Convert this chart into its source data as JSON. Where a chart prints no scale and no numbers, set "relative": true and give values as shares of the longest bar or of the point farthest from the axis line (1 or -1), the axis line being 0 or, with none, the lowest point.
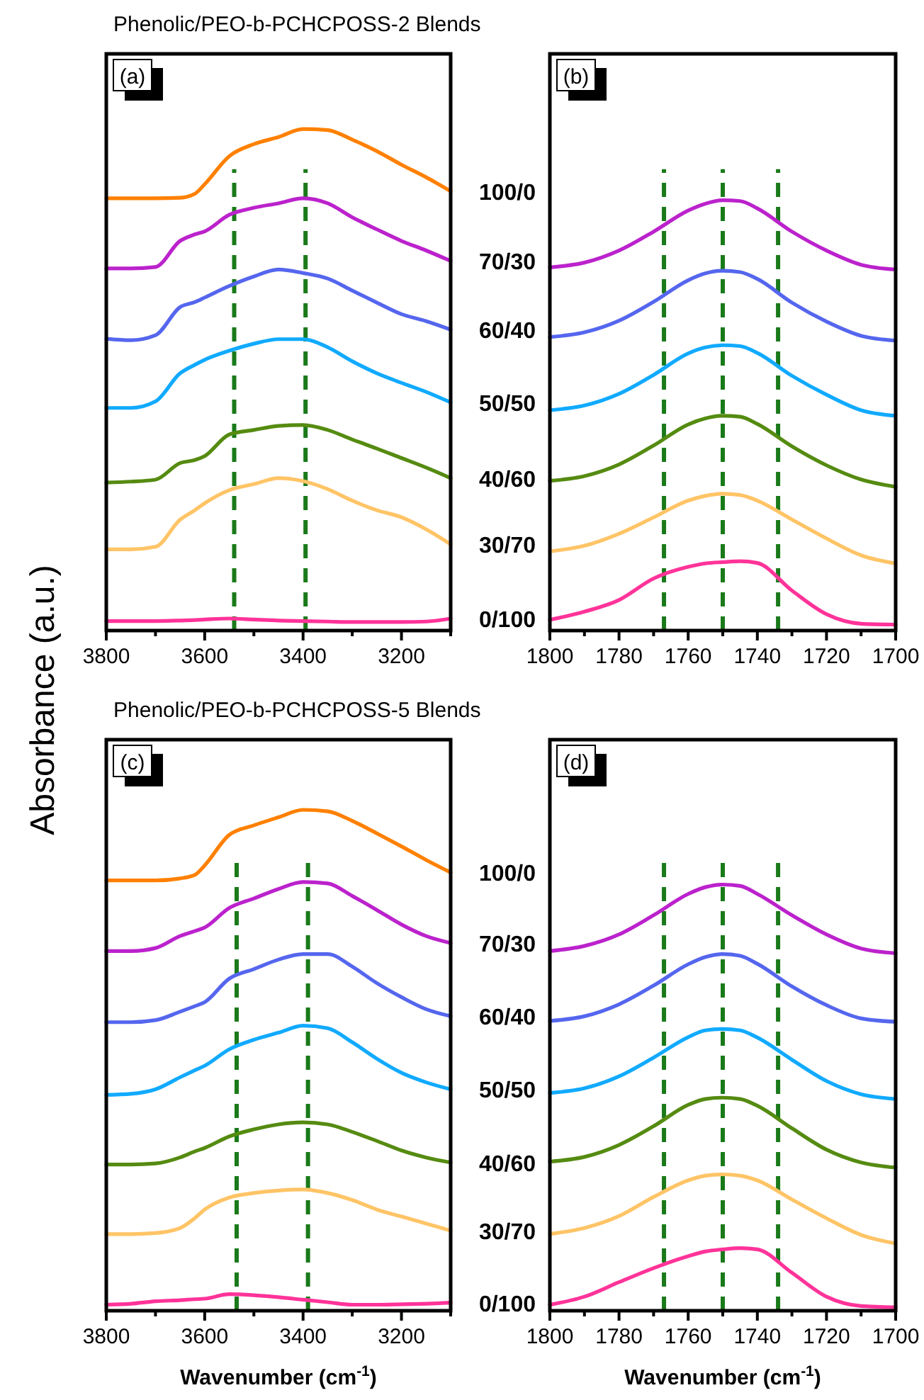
{
  "chart_data": [
    {
      "type": "line",
      "title": "Phenolic/PEO-b-PCHCPOSS-2 Blends",
      "ylabel": "Absorbance (a.u.)",
      "relative": true,
      "annotations": [
        "(a)"
      ],
      "xlim": [
        3800,
        3100
      ],
      "xticks": [
        3800,
        {
          "value": 3700,
          "label": null
        },
        3600,
        {
          "value": 3500,
          "label": null
        },
        3400,
        {
          "value": 3300,
          "label": null
        },
        3200,
        {
          "value": 3100,
          "label": null
        }
      ],
      "x": [
        3800,
        3750,
        3700,
        3650,
        3620,
        3600,
        3550,
        3500,
        3450,
        3400,
        3350,
        3300,
        3250,
        3200,
        3150,
        3100
      ],
      "series": [
        {
          "name": "100/0",
          "color": "#ff8000",
          "values": [
            0.862,
            0.862,
            0.862,
            0.863,
            0.871,
            0.89,
            0.946,
            0.97,
            0.984,
            1.0,
            0.998,
            0.979,
            0.956,
            0.929,
            0.904,
            0.876
          ]
        },
        {
          "name": "70/30",
          "color": "#bb22cc",
          "values": [
            0.722,
            0.722,
            0.725,
            0.777,
            0.79,
            0.796,
            0.829,
            0.843,
            0.852,
            0.862,
            0.852,
            0.824,
            0.8,
            0.777,
            0.758,
            0.737
          ]
        },
        {
          "name": "60/40",
          "color": "#5566ee",
          "values": [
            0.582,
            0.579,
            0.589,
            0.645,
            0.655,
            0.664,
            0.687,
            0.706,
            0.72,
            0.713,
            0.702,
            0.678,
            0.654,
            0.631,
            0.617,
            0.6
          ]
        },
        {
          "name": "50/50",
          "color": "#11aaff",
          "values": [
            0.444,
            0.444,
            0.457,
            0.513,
            0.53,
            0.54,
            0.558,
            0.572,
            0.581,
            0.581,
            0.565,
            0.537,
            0.513,
            0.494,
            0.476,
            0.455
          ]
        },
        {
          "name": "40/60",
          "color": "#558b11",
          "values": [
            0.295,
            0.297,
            0.301,
            0.334,
            0.34,
            0.348,
            0.391,
            0.4,
            0.408,
            0.41,
            0.4,
            0.381,
            0.363,
            0.344,
            0.325,
            0.304
          ]
        },
        {
          "name": "30/70",
          "color": "#ffc466",
          "values": [
            0.162,
            0.162,
            0.167,
            0.221,
            0.24,
            0.254,
            0.28,
            0.292,
            0.304,
            0.298,
            0.282,
            0.259,
            0.24,
            0.226,
            0.202,
            0.172
          ]
        },
        {
          "name": "0/100",
          "color": "#ff3399",
          "values": [
            0.019,
            0.019,
            0.019,
            0.02,
            0.021,
            0.022,
            0.024,
            0.022,
            0.02,
            0.019,
            0.018,
            0.017,
            0.017,
            0.017,
            0.018,
            0.024
          ]
        }
      ],
      "ref_lines": [
        {
          "axis": "x",
          "value": 3540,
          "color": "#1a7a1a",
          "line_style": "dashed"
        },
        {
          "axis": "x",
          "value": 3395,
          "color": "#1a7a1a",
          "line_style": "dashed"
        }
      ]
    },
    {
      "type": "line",
      "relative": true,
      "annotations": [
        "(b)"
      ],
      "xlim": [
        1800,
        1700
      ],
      "xticks": [
        1800,
        {
          "value": 1790,
          "label": null
        },
        1780,
        {
          "value": 1770,
          "label": null
        },
        1760,
        {
          "value": 1750,
          "label": null
        },
        1740,
        {
          "value": 1730,
          "label": null
        },
        1720,
        {
          "value": 1710,
          "label": null
        },
        1700
      ],
      "x": [
        1800,
        1790,
        1780,
        1770,
        1760,
        1755,
        1750,
        1745,
        1740,
        1730,
        1720,
        1710,
        1700
      ],
      "series": [
        {
          "color": "#bb22cc",
          "values": [
            0.844,
            0.855,
            0.883,
            0.927,
            0.976,
            0.992,
            1.0,
            0.998,
            0.981,
            0.927,
            0.883,
            0.85,
            0.839
          ]
        },
        {
          "color": "#5566ee",
          "values": [
            0.682,
            0.693,
            0.72,
            0.764,
            0.814,
            0.83,
            0.836,
            0.833,
            0.817,
            0.762,
            0.718,
            0.685,
            0.674
          ]
        },
        {
          "color": "#11aaff",
          "values": [
            0.512,
            0.523,
            0.55,
            0.594,
            0.644,
            0.658,
            0.663,
            0.661,
            0.645,
            0.592,
            0.548,
            0.512,
            0.499
          ]
        },
        {
          "color": "#558b11",
          "values": [
            0.348,
            0.359,
            0.386,
            0.43,
            0.479,
            0.493,
            0.499,
            0.497,
            0.48,
            0.428,
            0.384,
            0.351,
            0.334
          ]
        },
        {
          "color": "#ffc466",
          "values": [
            0.184,
            0.197,
            0.225,
            0.263,
            0.302,
            0.313,
            0.318,
            0.315,
            0.302,
            0.258,
            0.214,
            0.175,
            0.156
          ]
        },
        {
          "color": "#ff3399",
          "values": [
            0.025,
            0.044,
            0.071,
            0.121,
            0.148,
            0.156,
            0.159,
            0.161,
            0.157,
            0.093,
            0.038,
            0.016,
            0.014
          ]
        }
      ],
      "ref_lines": [
        {
          "axis": "x",
          "value": 1767,
          "color": "#1a7a1a",
          "line_style": "dashed"
        },
        {
          "axis": "x",
          "value": 1750,
          "color": "#1a7a1a",
          "line_style": "dashed"
        },
        {
          "axis": "x",
          "value": 1734,
          "color": "#1a7a1a",
          "line_style": "dashed"
        }
      ]
    },
    {
      "type": "line",
      "title": "Phenolic/PEO-b-PCHCPOSS-5 Blends",
      "xlabel": "Wavenumber (cm$^{-1}$)",
      "relative": true,
      "annotations": [
        "(c)"
      ],
      "xlim": [
        3800,
        3100
      ],
      "xticks": [
        3800,
        {
          "value": 3700,
          "label": null
        },
        3600,
        {
          "value": 3500,
          "label": null
        },
        3400,
        {
          "value": 3300,
          "label": null
        },
        3200,
        {
          "value": 3100,
          "label": null
        }
      ],
      "x": [
        3800,
        3750,
        3700,
        3650,
        3620,
        3600,
        3550,
        3500,
        3450,
        3400,
        3350,
        3300,
        3250,
        3200,
        3150,
        3100
      ],
      "series": [
        {
          "name": "100/0",
          "color": "#ff8000",
          "values": [
            0.859,
            0.859,
            0.859,
            0.863,
            0.87,
            0.889,
            0.95,
            0.969,
            0.985,
            1.0,
            0.997,
            0.978,
            0.953,
            0.927,
            0.9,
            0.875
          ]
        },
        {
          "name": "70/30",
          "color": "#bb22cc",
          "values": [
            0.718,
            0.718,
            0.724,
            0.748,
            0.758,
            0.765,
            0.804,
            0.823,
            0.842,
            0.856,
            0.853,
            0.828,
            0.8,
            0.771,
            0.748,
            0.734
          ]
        },
        {
          "name": "60/40",
          "color": "#5566ee",
          "values": [
            0.576,
            0.576,
            0.58,
            0.597,
            0.608,
            0.616,
            0.663,
            0.682,
            0.701,
            0.712,
            0.712,
            0.687,
            0.654,
            0.626,
            0.602,
            0.588
          ]
        },
        {
          "name": "50/50",
          "color": "#11aaff",
          "values": [
            0.431,
            0.433,
            0.442,
            0.466,
            0.48,
            0.489,
            0.522,
            0.541,
            0.555,
            0.569,
            0.564,
            0.536,
            0.503,
            0.475,
            0.456,
            0.442
          ]
        },
        {
          "name": "40/60",
          "color": "#558b11",
          "values": [
            0.292,
            0.292,
            0.294,
            0.306,
            0.318,
            0.325,
            0.348,
            0.362,
            0.372,
            0.376,
            0.372,
            0.357,
            0.339,
            0.32,
            0.306,
            0.296
          ]
        },
        {
          "name": "30/70",
          "color": "#ffc466",
          "values": [
            0.153,
            0.153,
            0.155,
            0.165,
            0.185,
            0.202,
            0.226,
            0.235,
            0.24,
            0.242,
            0.235,
            0.221,
            0.202,
            0.188,
            0.174,
            0.16
          ]
        },
        {
          "name": "0/100",
          "color": "#ff3399",
          "values": [
            0.012,
            0.014,
            0.019,
            0.021,
            0.023,
            0.024,
            0.033,
            0.031,
            0.027,
            0.022,
            0.017,
            0.012,
            0.012,
            0.013,
            0.014,
            0.016
          ]
        }
      ],
      "ref_lines": [
        {
          "axis": "x",
          "value": 3535,
          "color": "#1a7a1a",
          "line_style": "dashed"
        },
        {
          "axis": "x",
          "value": 3390,
          "color": "#1a7a1a",
          "line_style": "dashed"
        }
      ]
    },
    {
      "type": "line",
      "xlabel": "Wavenumber (cm$^{-1}$)",
      "relative": true,
      "annotations": [
        "(d)"
      ],
      "xlim": [
        1800,
        1700
      ],
      "xticks": [
        1800,
        {
          "value": 1790,
          "label": null
        },
        1780,
        {
          "value": 1770,
          "label": null
        },
        1760,
        {
          "value": 1750,
          "label": null
        },
        1740,
        {
          "value": 1730,
          "label": null
        },
        1720,
        {
          "value": 1710,
          "label": null
        },
        1700
      ],
      "x": [
        1800,
        1790,
        1780,
        1770,
        1760,
        1755,
        1750,
        1745,
        1740,
        1730,
        1720,
        1710,
        1700
      ],
      "series": [
        {
          "color": "#bb22cc",
          "values": [
            0.844,
            0.856,
            0.883,
            0.928,
            0.978,
            0.994,
            1.0,
            0.997,
            0.978,
            0.928,
            0.883,
            0.85,
            0.839
          ]
        },
        {
          "color": "#5566ee",
          "values": [
            0.68,
            0.691,
            0.719,
            0.763,
            0.813,
            0.83,
            0.837,
            0.833,
            0.814,
            0.761,
            0.717,
            0.686,
            0.678
          ]
        },
        {
          "color": "#11aaff",
          "values": [
            0.511,
            0.522,
            0.55,
            0.594,
            0.642,
            0.658,
            0.661,
            0.658,
            0.641,
            0.589,
            0.539,
            0.508,
            0.497
          ]
        },
        {
          "color": "#558b11",
          "values": [
            0.35,
            0.361,
            0.389,
            0.433,
            0.483,
            0.497,
            0.5,
            0.497,
            0.481,
            0.428,
            0.378,
            0.348,
            0.336
          ]
        },
        {
          "color": "#ffc466",
          "values": [
            0.18,
            0.194,
            0.222,
            0.267,
            0.306,
            0.317,
            0.32,
            0.317,
            0.306,
            0.261,
            0.217,
            0.178,
            0.158
          ]
        },
        {
          "color": "#ff3399",
          "values": [
            0.014,
            0.033,
            0.067,
            0.1,
            0.128,
            0.139,
            0.144,
            0.147,
            0.144,
            0.089,
            0.033,
            0.011,
            0.008
          ]
        }
      ],
      "ref_lines": [
        {
          "axis": "x",
          "value": 1767,
          "color": "#1a7a1a",
          "line_style": "dashed"
        },
        {
          "axis": "x",
          "value": 1750,
          "color": "#1a7a1a",
          "line_style": "dashed"
        },
        {
          "axis": "x",
          "value": 1734,
          "color": "#1a7a1a",
          "line_style": "dashed"
        }
      ]
    }
  ]
}
